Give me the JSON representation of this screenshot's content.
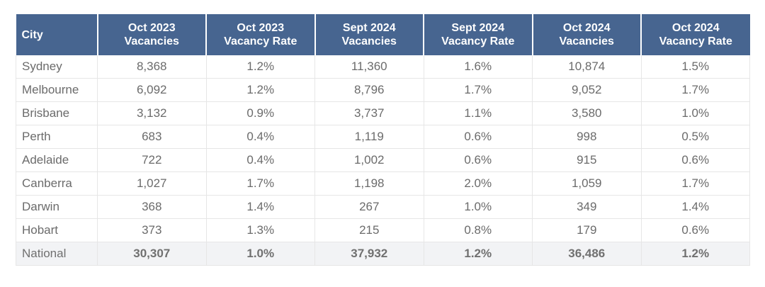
{
  "table": {
    "headers": [
      {
        "line1": "City",
        "line2": ""
      },
      {
        "line1": "Oct 2023",
        "line2": "Vacancies"
      },
      {
        "line1": "Oct 2023",
        "line2": "Vacancy Rate"
      },
      {
        "line1": "Sept 2024",
        "line2": "Vacancies"
      },
      {
        "line1": "Sept 2024",
        "line2": "Vacancy Rate"
      },
      {
        "line1": "Oct 2024",
        "line2": "Vacancies"
      },
      {
        "line1": "Oct 2024",
        "line2": "Vacancy Rate"
      }
    ],
    "rows": [
      [
        "Sydney",
        "8,368",
        "1.2%",
        "11,360",
        "1.6%",
        "10,874",
        "1.5%"
      ],
      [
        "Melbourne",
        "6,092",
        "1.2%",
        "8,796",
        "1.7%",
        "9,052",
        "1.7%"
      ],
      [
        "Brisbane",
        "3,132",
        "0.9%",
        "3,737",
        "1.1%",
        "3,580",
        "1.0%"
      ],
      [
        "Perth",
        "683",
        "0.4%",
        "1,119",
        "0.6%",
        "998",
        "0.5%"
      ],
      [
        "Adelaide",
        "722",
        "0.4%",
        "1,002",
        "0.6%",
        "915",
        "0.6%"
      ],
      [
        "Canberra",
        "1,027",
        "1.7%",
        "1,198",
        "2.0%",
        "1,059",
        "1.7%"
      ],
      [
        "Darwin",
        "368",
        "1.4%",
        "267",
        "1.0%",
        "349",
        "1.4%"
      ],
      [
        "Hobart",
        "373",
        "1.3%",
        "215",
        "0.8%",
        "179",
        "0.6%"
      ],
      [
        "National",
        "30,307",
        "1.0%",
        "37,932",
        "1.2%",
        "36,486",
        "1.2%"
      ]
    ],
    "header_color": "#476590",
    "total_row_color": "#f2f3f5"
  }
}
